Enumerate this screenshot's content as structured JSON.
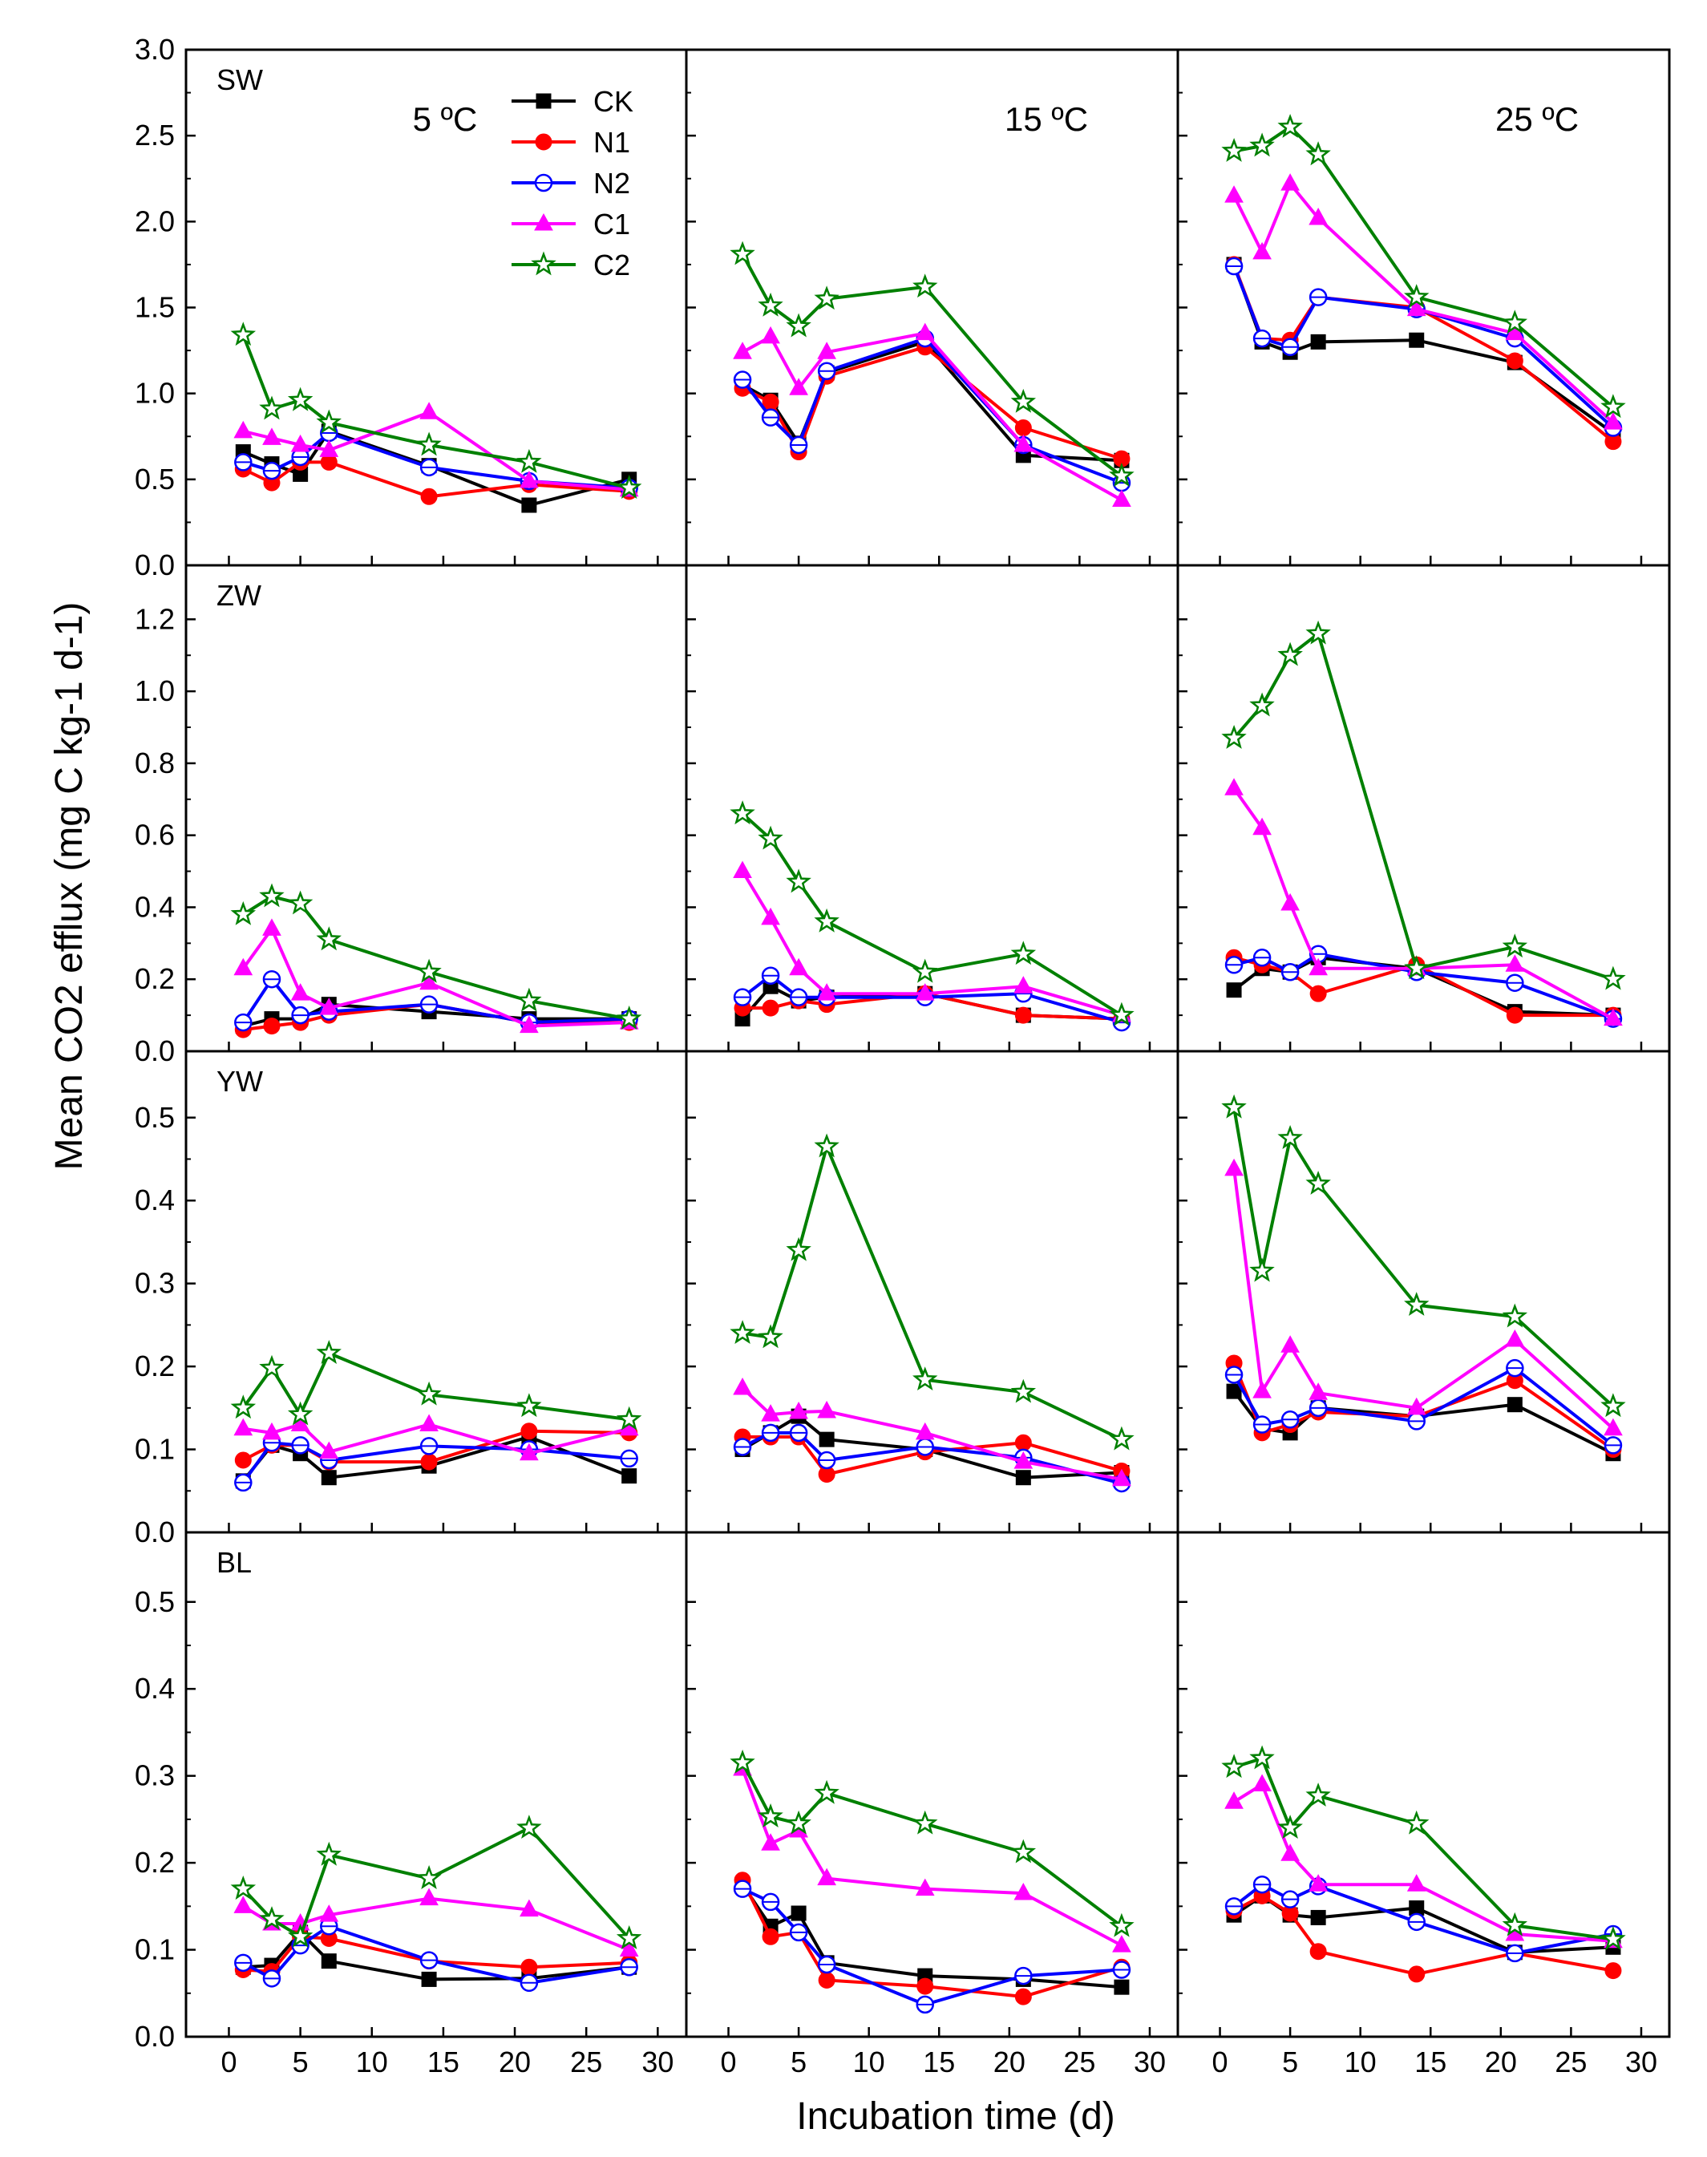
{
  "chart_data": {
    "type": "line",
    "title": "",
    "xlabel": "Incubation time (d)",
    "ylabel": "Mean CO2 efflux (mg C kg-1 d-1)",
    "xlim": [
      -3,
      32
    ],
    "xticks": [
      0,
      5,
      10,
      15,
      20,
      25,
      30
    ],
    "x": [
      1,
      3,
      5,
      7,
      14,
      21,
      28
    ],
    "legend": {
      "position": "top-left-panel",
      "entries": [
        {
          "name": "CK",
          "color": "#000000",
          "marker": "square"
        },
        {
          "name": "N1",
          "color": "#ff0000",
          "marker": "circle"
        },
        {
          "name": "N2",
          "color": "#0000ff",
          "marker": "open-circle"
        },
        {
          "name": "C1",
          "color": "#ff00ff",
          "marker": "triangle"
        },
        {
          "name": "C2",
          "color": "#008000",
          "marker": "open-star"
        }
      ]
    },
    "columns": [
      {
        "temperature": "5 ºC"
      },
      {
        "temperature": "15 ºC"
      },
      {
        "temperature": "25 ºC"
      }
    ],
    "rows": [
      {
        "soil": "SW",
        "ylim": [
          0,
          3.0
        ],
        "yticks": [
          "0.0",
          "0.5",
          "1.0",
          "1.5",
          "2.0",
          "2.5",
          "3.0"
        ],
        "panels": [
          {
            "series": [
              {
                "name": "CK",
                "values": [
                  0.66,
                  0.59,
                  0.53,
                  0.78,
                  0.58,
                  0.35,
                  0.5
                ]
              },
              {
                "name": "N1",
                "values": [
                  0.56,
                  0.48,
                  0.6,
                  0.6,
                  0.4,
                  0.47,
                  0.43
                ]
              },
              {
                "name": "N2",
                "values": [
                  0.6,
                  0.55,
                  0.63,
                  0.77,
                  0.57,
                  0.49,
                  0.45
                ]
              },
              {
                "name": "C1",
                "values": [
                  0.78,
                  0.74,
                  0.7,
                  0.67,
                  0.89,
                  0.49,
                  0.44
                ]
              },
              {
                "name": "C2",
                "values": [
                  1.34,
                  0.91,
                  0.96,
                  0.83,
                  0.7,
                  0.6,
                  0.45
                ]
              }
            ]
          },
          {
            "series": [
              {
                "name": "CK",
                "values": [
                  1.05,
                  0.96,
                  0.71,
                  1.12,
                  1.3,
                  0.64,
                  0.61
                ]
              },
              {
                "name": "N1",
                "values": [
                  1.03,
                  0.95,
                  0.66,
                  1.1,
                  1.27,
                  0.8,
                  0.62
                ]
              },
              {
                "name": "N2",
                "values": [
                  1.08,
                  0.86,
                  0.7,
                  1.13,
                  1.32,
                  0.7,
                  0.48
                ]
              },
              {
                "name": "C1",
                "values": [
                  1.24,
                  1.33,
                  1.03,
                  1.24,
                  1.35,
                  0.7,
                  0.38
                ]
              },
              {
                "name": "C2",
                "values": [
                  1.81,
                  1.51,
                  1.39,
                  1.55,
                  1.62,
                  0.95,
                  0.52
                ]
              }
            ]
          },
          {
            "series": [
              {
                "name": "CK",
                "values": [
                  1.75,
                  1.3,
                  1.24,
                  1.3,
                  1.31,
                  1.18,
                  0.77
                ]
              },
              {
                "name": "N1",
                "values": [
                  1.75,
                  1.32,
                  1.31,
                  1.56,
                  1.5,
                  1.19,
                  0.72
                ]
              },
              {
                "name": "N2",
                "values": [
                  1.74,
                  1.32,
                  1.27,
                  1.56,
                  1.49,
                  1.32,
                  0.8
                ]
              },
              {
                "name": "C1",
                "values": [
                  2.15,
                  1.82,
                  2.22,
                  2.02,
                  1.49,
                  1.35,
                  0.83
                ]
              },
              {
                "name": "C2",
                "values": [
                  2.41,
                  2.44,
                  2.55,
                  2.39,
                  1.56,
                  1.41,
                  0.92
                ]
              }
            ]
          }
        ]
      },
      {
        "soil": "ZW",
        "ylim": [
          0,
          1.35
        ],
        "yticks": [
          "0.0",
          "0.2",
          "0.4",
          "0.6",
          "0.8",
          "1.0",
          "1.2"
        ],
        "panels": [
          {
            "series": [
              {
                "name": "CK",
                "values": [
                  0.07,
                  0.09,
                  0.09,
                  0.13,
                  0.11,
                  0.09,
                  0.09
                ]
              },
              {
                "name": "N1",
                "values": [
                  0.06,
                  0.07,
                  0.08,
                  0.1,
                  0.13,
                  0.08,
                  0.08
                ]
              },
              {
                "name": "N2",
                "values": [
                  0.08,
                  0.2,
                  0.1,
                  0.11,
                  0.13,
                  0.08,
                  0.09
                ]
              },
              {
                "name": "C1",
                "values": [
                  0.23,
                  0.34,
                  0.16,
                  0.12,
                  0.19,
                  0.07,
                  0.08
                ]
              },
              {
                "name": "C2",
                "values": [
                  0.38,
                  0.43,
                  0.41,
                  0.31,
                  0.22,
                  0.14,
                  0.09
                ]
              }
            ]
          },
          {
            "series": [
              {
                "name": "CK",
                "values": [
                  0.09,
                  0.18,
                  0.14,
                  0.15,
                  0.16,
                  0.1,
                  0.09
                ]
              },
              {
                "name": "N1",
                "values": [
                  0.12,
                  0.12,
                  0.14,
                  0.13,
                  0.16,
                  0.1,
                  0.09
                ]
              },
              {
                "name": "N2",
                "values": [
                  0.15,
                  0.21,
                  0.15,
                  0.15,
                  0.15,
                  0.16,
                  0.08
                ]
              },
              {
                "name": "C1",
                "values": [
                  0.5,
                  0.37,
                  0.23,
                  0.16,
                  0.16,
                  0.18,
                  0.1
                ]
              },
              {
                "name": "C2",
                "values": [
                  0.66,
                  0.59,
                  0.47,
                  0.36,
                  0.22,
                  0.27,
                  0.1
                ]
              }
            ]
          },
          {
            "series": [
              {
                "name": "CK",
                "values": [
                  0.17,
                  0.23,
                  0.22,
                  0.26,
                  0.23,
                  0.11,
                  0.1
                ]
              },
              {
                "name": "N1",
                "values": [
                  0.26,
                  0.24,
                  0.22,
                  0.16,
                  0.24,
                  0.1,
                  0.1
                ]
              },
              {
                "name": "N2",
                "values": [
                  0.24,
                  0.26,
                  0.22,
                  0.27,
                  0.22,
                  0.19,
                  0.09
                ]
              },
              {
                "name": "C1",
                "values": [
                  0.73,
                  0.62,
                  0.41,
                  0.23,
                  0.23,
                  0.24,
                  0.09
                ]
              },
              {
                "name": "C2",
                "values": [
                  0.87,
                  0.96,
                  1.1,
                  1.16,
                  0.23,
                  0.29,
                  0.2
                ]
              }
            ]
          }
        ]
      },
      {
        "soil": "YW",
        "ylim": [
          0,
          0.58
        ],
        "yticks": [
          "0.0",
          "0.1",
          "0.2",
          "0.3",
          "0.4",
          "0.5"
        ],
        "panels": [
          {
            "series": [
              {
                "name": "CK",
                "values": [
                  0.062,
                  0.105,
                  0.095,
                  0.066,
                  0.08,
                  0.115,
                  0.068
                ]
              },
              {
                "name": "N1",
                "values": [
                  0.087,
                  0.105,
                  0.105,
                  0.085,
                  0.085,
                  0.122,
                  0.12
                ]
              },
              {
                "name": "N2",
                "values": [
                  0.06,
                  0.108,
                  0.105,
                  0.087,
                  0.104,
                  0.1,
                  0.089
                ]
              },
              {
                "name": "C1",
                "values": [
                  0.125,
                  0.12,
                  0.13,
                  0.097,
                  0.13,
                  0.095,
                  0.125
                ]
              },
              {
                "name": "C2",
                "values": [
                  0.15,
                  0.198,
                  0.142,
                  0.216,
                  0.166,
                  0.152,
                  0.136
                ]
              }
            ]
          },
          {
            "series": [
              {
                "name": "CK",
                "values": [
                  0.1,
                  0.12,
                  0.14,
                  0.112,
                  0.1,
                  0.066,
                  0.072
                ]
              },
              {
                "name": "N1",
                "values": [
                  0.115,
                  0.115,
                  0.115,
                  0.07,
                  0.097,
                  0.108,
                  0.074
                ]
              },
              {
                "name": "N2",
                "values": [
                  0.103,
                  0.12,
                  0.12,
                  0.087,
                  0.103,
                  0.09,
                  0.059
                ]
              },
              {
                "name": "C1",
                "values": [
                  0.174,
                  0.142,
                  0.145,
                  0.146,
                  0.12,
                  0.085,
                  0.064
                ]
              },
              {
                "name": "C2",
                "values": [
                  0.24,
                  0.235,
                  0.34,
                  0.465,
                  0.184,
                  0.169,
                  0.112
                ]
              }
            ]
          },
          {
            "series": [
              {
                "name": "CK",
                "values": [
                  0.17,
                  0.125,
                  0.12,
                  0.15,
                  0.14,
                  0.154,
                  0.095
                ]
              },
              {
                "name": "N1",
                "values": [
                  0.204,
                  0.12,
                  0.13,
                  0.145,
                  0.14,
                  0.183,
                  0.1
                ]
              },
              {
                "name": "N2",
                "values": [
                  0.19,
                  0.13,
                  0.136,
                  0.15,
                  0.134,
                  0.198,
                  0.105
                ]
              },
              {
                "name": "C1",
                "values": [
                  0.438,
                  0.17,
                  0.225,
                  0.168,
                  0.15,
                  0.232,
                  0.125
                ]
              },
              {
                "name": "C2",
                "values": [
                  0.512,
                  0.315,
                  0.475,
                  0.42,
                  0.274,
                  0.26,
                  0.152
                ]
              }
            ]
          }
        ]
      },
      {
        "soil": "BL",
        "ylim": [
          0,
          0.58
        ],
        "yticks": [
          "0.0",
          "0.1",
          "0.2",
          "0.3",
          "0.4",
          "0.5"
        ],
        "panels": [
          {
            "series": [
              {
                "name": "CK",
                "values": [
                  0.08,
                  0.082,
                  0.12,
                  0.087,
                  0.066,
                  0.067,
                  0.08
                ]
              },
              {
                "name": "N1",
                "values": [
                  0.077,
                  0.075,
                  0.115,
                  0.113,
                  0.087,
                  0.08,
                  0.085
                ]
              },
              {
                "name": "N2",
                "values": [
                  0.085,
                  0.067,
                  0.105,
                  0.127,
                  0.088,
                  0.062,
                  0.08
                ]
              },
              {
                "name": "C1",
                "values": [
                  0.15,
                  0.13,
                  0.13,
                  0.14,
                  0.159,
                  0.146,
                  0.1
                ]
              },
              {
                "name": "C2",
                "values": [
                  0.17,
                  0.135,
                  0.115,
                  0.209,
                  0.182,
                  0.24,
                  0.113
                ]
              }
            ]
          },
          {
            "series": [
              {
                "name": "CK",
                "values": [
                  0.175,
                  0.127,
                  0.142,
                  0.085,
                  0.07,
                  0.066,
                  0.057
                ]
              },
              {
                "name": "N1",
                "values": [
                  0.18,
                  0.115,
                  0.12,
                  0.065,
                  0.058,
                  0.046,
                  0.08
                ]
              },
              {
                "name": "N2",
                "values": [
                  0.17,
                  0.155,
                  0.12,
                  0.083,
                  0.037,
                  0.07,
                  0.077
                ]
              },
              {
                "name": "C1",
                "values": [
                  0.308,
                  0.222,
                  0.237,
                  0.182,
                  0.17,
                  0.165,
                  0.105
                ]
              },
              {
                "name": "C2",
                "values": [
                  0.315,
                  0.253,
                  0.245,
                  0.28,
                  0.245,
                  0.212,
                  0.127
                ]
              }
            ]
          },
          {
            "series": [
              {
                "name": "CK",
                "values": [
                  0.14,
                  0.162,
                  0.14,
                  0.137,
                  0.148,
                  0.097,
                  0.103
                ]
              },
              {
                "name": "N1",
                "values": [
                  0.145,
                  0.162,
                  0.142,
                  0.098,
                  0.072,
                  0.096,
                  0.076
                ]
              },
              {
                "name": "N2",
                "values": [
                  0.15,
                  0.175,
                  0.158,
                  0.173,
                  0.132,
                  0.096,
                  0.118
                ]
              },
              {
                "name": "C1",
                "values": [
                  0.27,
                  0.29,
                  0.21,
                  0.175,
                  0.175,
                  0.118,
                  0.11
                ]
              },
              {
                "name": "C2",
                "values": [
                  0.31,
                  0.32,
                  0.24,
                  0.277,
                  0.245,
                  0.128,
                  0.112
                ]
              }
            ]
          }
        ]
      }
    ]
  }
}
